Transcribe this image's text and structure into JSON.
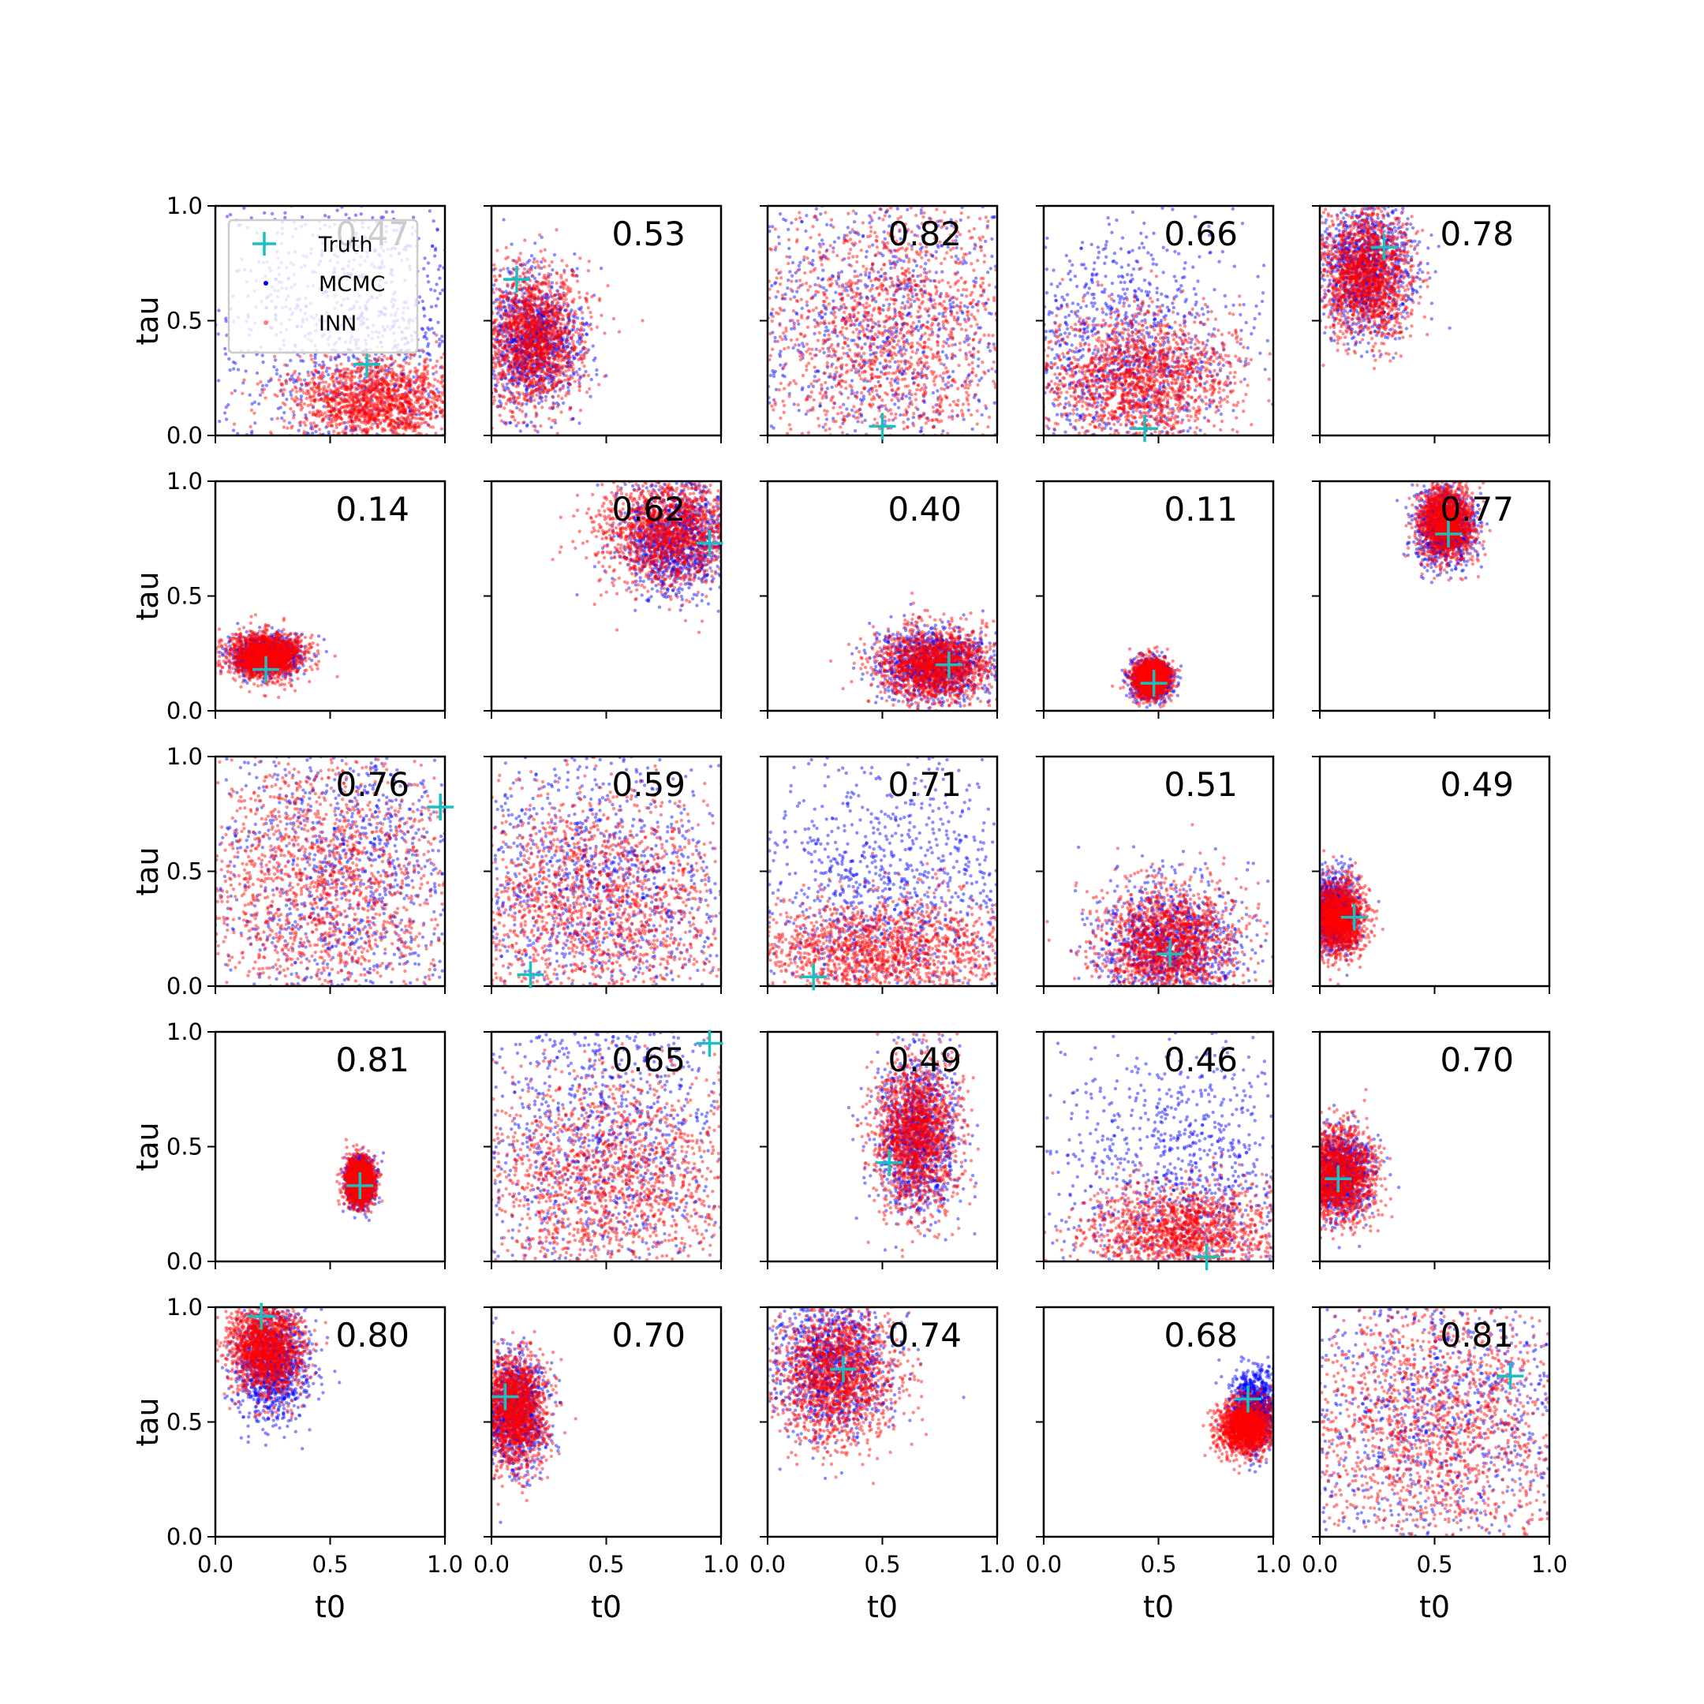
{
  "figure": {
    "x_axis_label": "t0",
    "y_axis_label": "tau",
    "tick_labels": [
      "0.0",
      "0.5",
      "1.0"
    ],
    "legend": {
      "entries": [
        {
          "label": "Truth",
          "marker": "plus",
          "color": "#1bbfbf"
        },
        {
          "label": "MCMC",
          "marker": "dot",
          "color": "#0000ff"
        },
        {
          "label": "INN",
          "marker": "dot",
          "color": "#ff0000"
        }
      ]
    },
    "colors": {
      "truth": "#1bbfbf",
      "mcmc": "#0000ff",
      "inn": "#ff0000"
    }
  },
  "chart_data": {
    "type": "scatter",
    "layout": "5x5 grid of subplots",
    "xlabel": "t0",
    "ylabel": "tau",
    "xlim": [
      0,
      1
    ],
    "ylim": [
      0,
      1
    ],
    "ticks": [
      0.0,
      0.5,
      1.0
    ],
    "series_names": [
      "Truth",
      "MCMC",
      "INN"
    ],
    "panels": [
      {
        "score": "0.47",
        "truth": [
          0.66,
          0.31
        ],
        "inn": {
          "cx": 0.7,
          "cy": 0.15,
          "sx": 0.2,
          "sy": 0.1
        },
        "mcmc": {
          "cx": 0.6,
          "cy": 0.45,
          "sx": 0.3,
          "sy": 0.35
        }
      },
      {
        "score": "0.53",
        "truth": [
          0.11,
          0.68
        ],
        "inn": {
          "cx": 0.18,
          "cy": 0.42,
          "sx": 0.11,
          "sy": 0.15
        },
        "mcmc": {
          "cx": 0.18,
          "cy": 0.42,
          "sx": 0.1,
          "sy": 0.14
        }
      },
      {
        "score": "0.82",
        "truth": [
          0.5,
          0.04
        ],
        "inn": {
          "cx": 0.55,
          "cy": 0.45,
          "sx": 0.3,
          "sy": 0.3
        },
        "mcmc": {
          "cx": 0.5,
          "cy": 0.5,
          "sx": 0.35,
          "sy": 0.4
        }
      },
      {
        "score": "0.66",
        "truth": [
          0.44,
          0.03
        ],
        "inn": {
          "cx": 0.42,
          "cy": 0.25,
          "sx": 0.2,
          "sy": 0.15
        },
        "mcmc": {
          "cx": 0.35,
          "cy": 0.35,
          "sx": 0.25,
          "sy": 0.25
        }
      },
      {
        "score": "0.78",
        "truth": [
          0.28,
          0.82
        ],
        "inn": {
          "cx": 0.2,
          "cy": 0.7,
          "sx": 0.1,
          "sy": 0.14
        },
        "mcmc": {
          "cx": 0.2,
          "cy": 0.72,
          "sx": 0.1,
          "sy": 0.14
        }
      },
      {
        "score": "0.14",
        "truth": [
          0.22,
          0.18
        ],
        "inn": {
          "cx": 0.22,
          "cy": 0.24,
          "sx": 0.08,
          "sy": 0.05
        },
        "mcmc": {
          "cx": 0.22,
          "cy": 0.24,
          "sx": 0.07,
          "sy": 0.04
        }
      },
      {
        "score": "0.62",
        "truth": [
          0.95,
          0.73
        ],
        "inn": {
          "cx": 0.78,
          "cy": 0.78,
          "sx": 0.15,
          "sy": 0.12
        },
        "mcmc": {
          "cx": 0.8,
          "cy": 0.75,
          "sx": 0.12,
          "sy": 0.12
        }
      },
      {
        "score": "0.40",
        "truth": [
          0.79,
          0.2
        ],
        "inn": {
          "cx": 0.72,
          "cy": 0.2,
          "sx": 0.12,
          "sy": 0.08
        },
        "mcmc": {
          "cx": 0.72,
          "cy": 0.2,
          "sx": 0.12,
          "sy": 0.08
        }
      },
      {
        "score": "0.11",
        "truth": [
          0.48,
          0.12
        ],
        "inn": {
          "cx": 0.47,
          "cy": 0.14,
          "sx": 0.04,
          "sy": 0.04
        },
        "mcmc": {
          "cx": 0.47,
          "cy": 0.14,
          "sx": 0.04,
          "sy": 0.04
        }
      },
      {
        "score": "0.77",
        "truth": [
          0.56,
          0.77
        ],
        "inn": {
          "cx": 0.55,
          "cy": 0.82,
          "sx": 0.06,
          "sy": 0.08
        },
        "mcmc": {
          "cx": 0.55,
          "cy": 0.8,
          "sx": 0.06,
          "sy": 0.08
        }
      },
      {
        "score": "0.76",
        "truth": [
          0.98,
          0.78
        ],
        "inn": {
          "cx": 0.45,
          "cy": 0.45,
          "sx": 0.3,
          "sy": 0.3
        },
        "mcmc": {
          "cx": 0.6,
          "cy": 0.5,
          "sx": 0.3,
          "sy": 0.35
        }
      },
      {
        "score": "0.59",
        "truth": [
          0.17,
          0.05
        ],
        "inn": {
          "cx": 0.45,
          "cy": 0.35,
          "sx": 0.3,
          "sy": 0.25
        },
        "mcmc": {
          "cx": 0.45,
          "cy": 0.45,
          "sx": 0.3,
          "sy": 0.3
        }
      },
      {
        "score": "0.71",
        "truth": [
          0.2,
          0.04
        ],
        "inn": {
          "cx": 0.5,
          "cy": 0.15,
          "sx": 0.3,
          "sy": 0.12
        },
        "mcmc": {
          "cx": 0.5,
          "cy": 0.4,
          "sx": 0.3,
          "sy": 0.3
        }
      },
      {
        "score": "0.51",
        "truth": [
          0.55,
          0.14
        ],
        "inn": {
          "cx": 0.55,
          "cy": 0.18,
          "sx": 0.15,
          "sy": 0.13
        },
        "mcmc": {
          "cx": 0.55,
          "cy": 0.18,
          "sx": 0.16,
          "sy": 0.14
        }
      },
      {
        "score": "0.49",
        "truth": [
          0.15,
          0.3
        ],
        "inn": {
          "cx": 0.08,
          "cy": 0.3,
          "sx": 0.06,
          "sy": 0.08
        },
        "mcmc": {
          "cx": 0.06,
          "cy": 0.32,
          "sx": 0.05,
          "sy": 0.08
        }
      },
      {
        "score": "0.81",
        "truth": [
          0.63,
          0.33
        ],
        "inn": {
          "cx": 0.63,
          "cy": 0.35,
          "sx": 0.03,
          "sy": 0.05
        },
        "mcmc": {
          "cx": 0.63,
          "cy": 0.35,
          "sx": 0.03,
          "sy": 0.05
        }
      },
      {
        "score": "0.65",
        "truth": [
          0.95,
          0.95
        ],
        "inn": {
          "cx": 0.5,
          "cy": 0.35,
          "sx": 0.3,
          "sy": 0.25
        },
        "mcmc": {
          "cx": 0.5,
          "cy": 0.55,
          "sx": 0.3,
          "sy": 0.35
        }
      },
      {
        "score": "0.49",
        "truth": [
          0.53,
          0.43
        ],
        "inn": {
          "cx": 0.65,
          "cy": 0.55,
          "sx": 0.09,
          "sy": 0.17
        },
        "mcmc": {
          "cx": 0.65,
          "cy": 0.55,
          "sx": 0.09,
          "sy": 0.17
        }
      },
      {
        "score": "0.46",
        "truth": [
          0.71,
          0.02
        ],
        "inn": {
          "cx": 0.6,
          "cy": 0.12,
          "sx": 0.22,
          "sy": 0.12
        },
        "mcmc": {
          "cx": 0.6,
          "cy": 0.35,
          "sx": 0.3,
          "sy": 0.3
        }
      },
      {
        "score": "0.70",
        "truth": [
          0.08,
          0.36
        ],
        "inn": {
          "cx": 0.08,
          "cy": 0.38,
          "sx": 0.08,
          "sy": 0.1
        },
        "mcmc": {
          "cx": 0.08,
          "cy": 0.38,
          "sx": 0.07,
          "sy": 0.09
        }
      },
      {
        "score": "0.80",
        "truth": [
          0.2,
          0.96
        ],
        "inn": {
          "cx": 0.22,
          "cy": 0.82,
          "sx": 0.08,
          "sy": 0.1
        },
        "mcmc": {
          "cx": 0.25,
          "cy": 0.75,
          "sx": 0.08,
          "sy": 0.12
        }
      },
      {
        "score": "0.70",
        "truth": [
          0.06,
          0.61
        ],
        "inn": {
          "cx": 0.1,
          "cy": 0.55,
          "sx": 0.07,
          "sy": 0.12
        },
        "mcmc": {
          "cx": 0.1,
          "cy": 0.55,
          "sx": 0.07,
          "sy": 0.12
        }
      },
      {
        "score": "0.74",
        "truth": [
          0.33,
          0.73
        ],
        "inn": {
          "cx": 0.3,
          "cy": 0.7,
          "sx": 0.13,
          "sy": 0.15
        },
        "mcmc": {
          "cx": 0.28,
          "cy": 0.75,
          "sx": 0.13,
          "sy": 0.15
        }
      },
      {
        "score": "0.68",
        "truth": [
          0.89,
          0.6
        ],
        "inn": {
          "cx": 0.88,
          "cy": 0.48,
          "sx": 0.06,
          "sy": 0.06
        },
        "mcmc": {
          "cx": 0.92,
          "cy": 0.55,
          "sx": 0.05,
          "sy": 0.08
        }
      },
      {
        "score": "0.81",
        "truth": [
          0.83,
          0.7
        ],
        "inn": {
          "cx": 0.5,
          "cy": 0.5,
          "sx": 0.3,
          "sy": 0.3
        },
        "mcmc": {
          "cx": 0.5,
          "cy": 0.55,
          "sx": 0.35,
          "sy": 0.35
        }
      }
    ]
  }
}
